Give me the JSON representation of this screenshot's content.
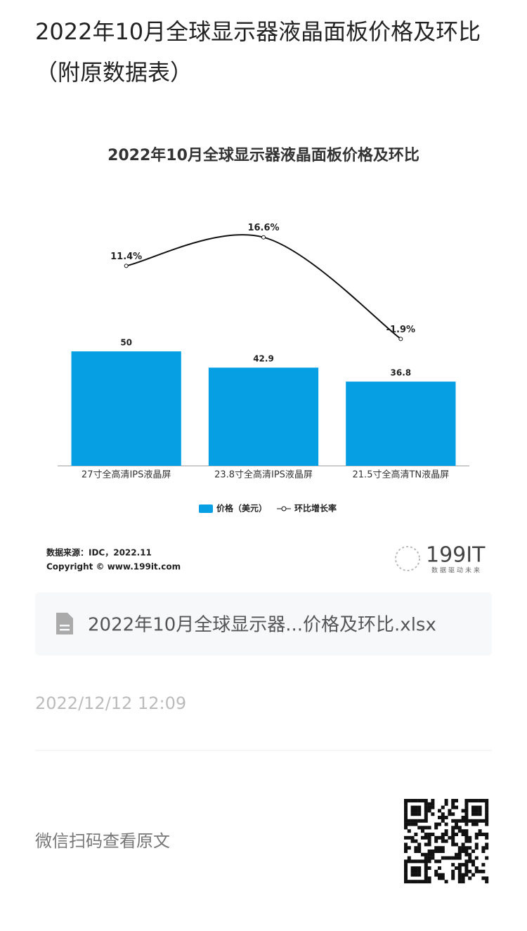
{
  "page": {
    "title": "2022年10月全球显示器液晶面板价格及环比（附原数据表）",
    "attachment": "2022年10月全球显示器...价格及环比.xlsx",
    "date": "2022/12/12 12:09",
    "qr_caption": "微信扫码查看原文",
    "logo": {
      "text": "199IT",
      "tagline": "数据驱动未来"
    }
  },
  "chart_data": {
    "type": "bar",
    "title": "2022年10月全球显示器液晶面板价格及环比",
    "categories": [
      "27寸全高清IPS液晶屏",
      "23.8寸全高清IPS液晶屏",
      "21.5寸全高清TN液晶屏"
    ],
    "series": [
      {
        "name": "价格（美元）",
        "type": "bar",
        "color": "#079fe3",
        "values": [
          50,
          42.9,
          36.8
        ]
      },
      {
        "name": "环比增长率",
        "type": "line",
        "axis": "y2",
        "color": "#111111",
        "values": [
          11.4,
          16.6,
          -1.9
        ],
        "value_labels": [
          "11.4%",
          "16.6%",
          "-1.9%"
        ]
      }
    ],
    "ylim": [
      0,
      120
    ],
    "y2lim": [
      -25,
      25
    ],
    "source": "数据来源：IDC，2022.11",
    "copyright": "Copyright © www.199it.com"
  }
}
